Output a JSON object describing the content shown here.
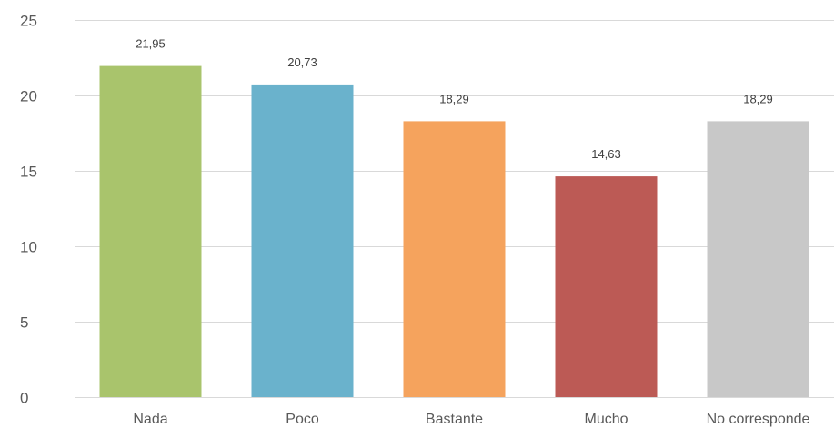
{
  "chart_data": {
    "type": "bar",
    "categories": [
      "Nada",
      "Poco",
      "Bastante",
      "Mucho",
      "No corresponde"
    ],
    "values": [
      21.95,
      20.73,
      18.29,
      14.63,
      18.29
    ],
    "value_labels": [
      "21,95",
      "20,73",
      "18,29",
      "14,63",
      "18,29"
    ],
    "colors": [
      "#a9c46c",
      "#6ab2cc",
      "#f5a35d",
      "#bc5a55",
      "#c8c8c8"
    ],
    "y_ticks": [
      0,
      5,
      10,
      15,
      20,
      25
    ],
    "y_tick_labels": [
      "0",
      "5",
      "10",
      "15",
      "20",
      "25"
    ],
    "ylim": [
      0,
      25
    ],
    "grid": true,
    "legend": "none",
    "title": "",
    "xlabel": "",
    "ylabel": ""
  }
}
